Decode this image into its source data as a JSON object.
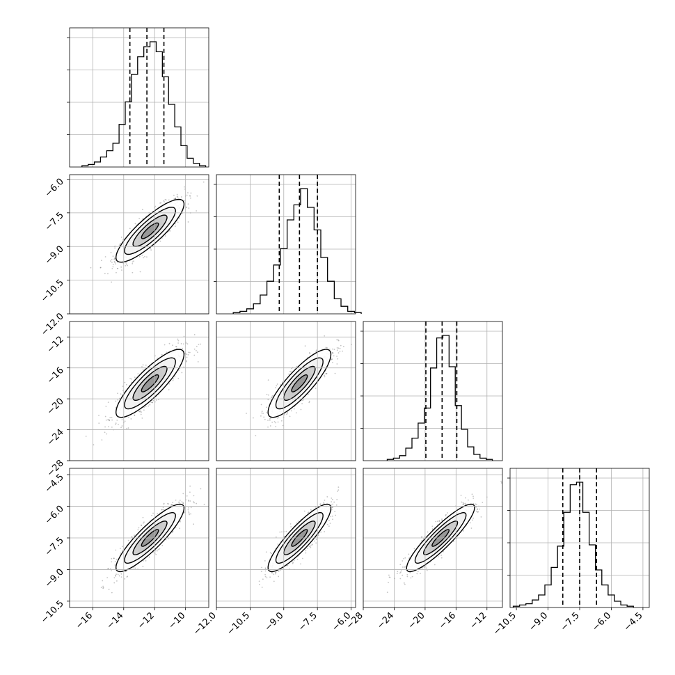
{
  "chart_data": {
    "type": "corner",
    "grid": true,
    "title": "",
    "parameters": [
      {
        "range": [
          -17.5,
          -8.5
        ],
        "ticks": [
          -16,
          -14,
          -12,
          -10
        ],
        "tick_labels": [
          "−16",
          "−14",
          "−12",
          "−10"
        ],
        "quantiles": [
          -13.6,
          -12.5,
          -11.4
        ],
        "hist_bin_width": 0.4,
        "hist_peak": -12.1
      },
      {
        "range": [
          -12.0,
          -5.8
        ],
        "ticks": [
          -12.0,
          -10.5,
          -9.0,
          -7.5,
          -6.0
        ],
        "tick_labels": [
          "−12.0",
          "−10.5",
          "−9.0",
          "−7.5",
          "−6.0"
        ],
        "quantiles": [
          -9.2,
          -8.3,
          -7.5
        ],
        "hist_bin_width": 0.3,
        "hist_peak": -8.1
      },
      {
        "range": [
          -28,
          -10
        ],
        "ticks": [
          -28,
          -24,
          -20,
          -16,
          -12
        ],
        "tick_labels": [
          "−28",
          "−24",
          "−20",
          "−16",
          "−12"
        ],
        "quantiles": [
          -19.9,
          -17.8,
          -15.9
        ],
        "hist_bin_width": 0.8,
        "hist_peak": -17.3
      },
      {
        "range": [
          -10.8,
          -4.2
        ],
        "ticks": [
          -10.5,
          -9.0,
          -7.5,
          -6.0,
          -4.5
        ],
        "tick_labels": [
          "−10.5",
          "−9.0",
          "−7.5",
          "−6.0",
          "−4.5"
        ],
        "quantiles": [
          -8.3,
          -7.5,
          -6.7
        ],
        "hist_bin_width": 0.3,
        "hist_peak": -7.5
      }
    ],
    "histograms": [
      [
        0.01,
        0.02,
        0.04,
        0.08,
        0.13,
        0.19,
        0.34,
        0.52,
        0.74,
        0.88,
        0.96,
        1.0,
        0.92,
        0.72,
        0.5,
        0.32,
        0.17,
        0.07,
        0.03,
        0.01
      ],
      [
        0.01,
        0.02,
        0.04,
        0.08,
        0.15,
        0.26,
        0.39,
        0.52,
        0.75,
        0.87,
        1.0,
        0.85,
        0.67,
        0.45,
        0.26,
        0.12,
        0.06,
        0.02,
        0.01
      ],
      [
        0.01,
        0.02,
        0.04,
        0.1,
        0.18,
        0.3,
        0.42,
        0.74,
        0.98,
        1.0,
        0.75,
        0.44,
        0.25,
        0.11,
        0.05,
        0.02,
        0.01
      ],
      [
        0.01,
        0.02,
        0.03,
        0.06,
        0.1,
        0.18,
        0.32,
        0.49,
        0.76,
        0.98,
        1.0,
        0.76,
        0.5,
        0.3,
        0.18,
        0.1,
        0.05,
        0.02,
        0.01
      ]
    ],
    "pairs": [
      {
        "x": 0,
        "y": 1,
        "mean": [
          -12.3,
          -8.3
        ],
        "sd": [
          1.1,
          0.7
        ],
        "corr": 0.85
      },
      {
        "x": 0,
        "y": 2,
        "mean": [
          -12.3,
          -18.0
        ],
        "sd": [
          1.1,
          2.2
        ],
        "corr": 0.85
      },
      {
        "x": 1,
        "y": 2,
        "mean": [
          -8.3,
          -18.0
        ],
        "sd": [
          0.7,
          2.2
        ],
        "corr": 0.85
      },
      {
        "x": 0,
        "y": 3,
        "mean": [
          -12.3,
          -7.5
        ],
        "sd": [
          1.1,
          0.8
        ],
        "corr": 0.88
      },
      {
        "x": 1,
        "y": 3,
        "mean": [
          -8.3,
          -7.5
        ],
        "sd": [
          0.7,
          0.8
        ],
        "corr": 0.88
      },
      {
        "x": 2,
        "y": 3,
        "mean": [
          -18.0,
          -7.5
        ],
        "sd": [
          2.2,
          0.8
        ],
        "corr": 0.9
      }
    ],
    "contour_levels_sigma": [
      0.5,
      1.0,
      1.5,
      2.0
    ]
  }
}
